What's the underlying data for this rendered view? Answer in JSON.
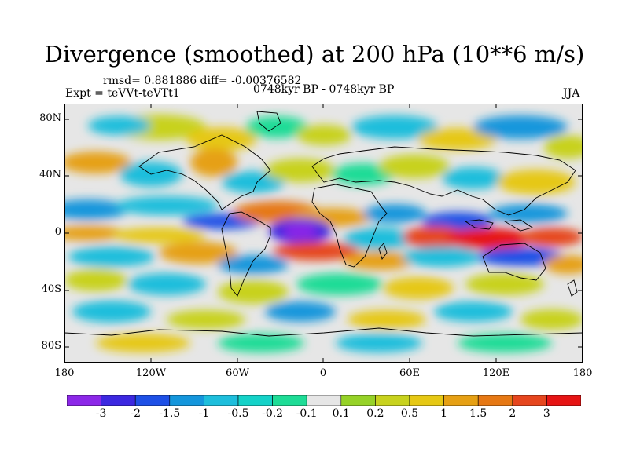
{
  "title": "Divergence (smoothed) at 200 hPa (10**6 m/s)",
  "stats_line": "rmsd= 0.881886 diff= -0.00376582",
  "expt_line": "Expt = teVVt-teVTt1",
  "period_line": "0748kyr BP - 0748kyr BP",
  "season": "JJA",
  "axes": {
    "y_ticks": [
      "80N",
      "40N",
      "0",
      "40S",
      "80S"
    ],
    "x_ticks": [
      "180",
      "120W",
      "60W",
      "0",
      "60E",
      "120E",
      "180"
    ]
  },
  "colorbar": {
    "colors": [
      "#8c28e8",
      "#3c28e0",
      "#1e50e6",
      "#1496dc",
      "#1ebedc",
      "#14d2c8",
      "#1edc96",
      "#e6e6e6",
      "#96d228",
      "#c8d21e",
      "#e6c814",
      "#e6a014",
      "#e67814",
      "#e6461e",
      "#e61414"
    ],
    "labels": [
      "-3",
      "-2",
      "-1.5",
      "-1",
      "-0.5",
      "-0.2",
      "-0.1",
      "0.1",
      "0.2",
      "0.5",
      "1",
      "1.5",
      "2",
      "3"
    ]
  }
}
